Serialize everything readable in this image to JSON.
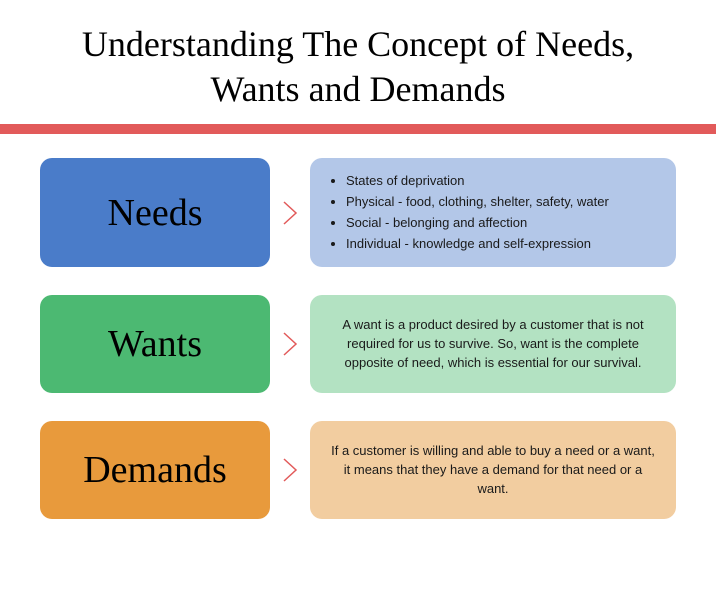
{
  "title": "Understanding The Concept of Needs, Wants and Demands",
  "divider_color": "#e25a5a",
  "chevron_color": "#e25a5a",
  "rows": [
    {
      "label": "Needs",
      "label_bg": "#4a7cc9",
      "desc_bg": "#b3c7e8",
      "type": "list",
      "bullets": [
        "States of deprivation",
        "Physical - food, clothing, shelter, safety, water",
        "Social - belonging and affection",
        "Individual - knowledge and self-expression"
      ]
    },
    {
      "label": "Wants",
      "label_bg": "#4cb972",
      "desc_bg": "#b3e2c2",
      "type": "text",
      "text": "A want is a product desired by a customer that is not required for us to survive. So, want is the complete opposite of need, which is essential for our survival."
    },
    {
      "label": "Demands",
      "label_bg": "#e89a3c",
      "desc_bg": "#f2cda0",
      "type": "text",
      "text": "If a customer is willing and able to buy a need or a want, it means that they have a demand for that need or a want."
    }
  ]
}
